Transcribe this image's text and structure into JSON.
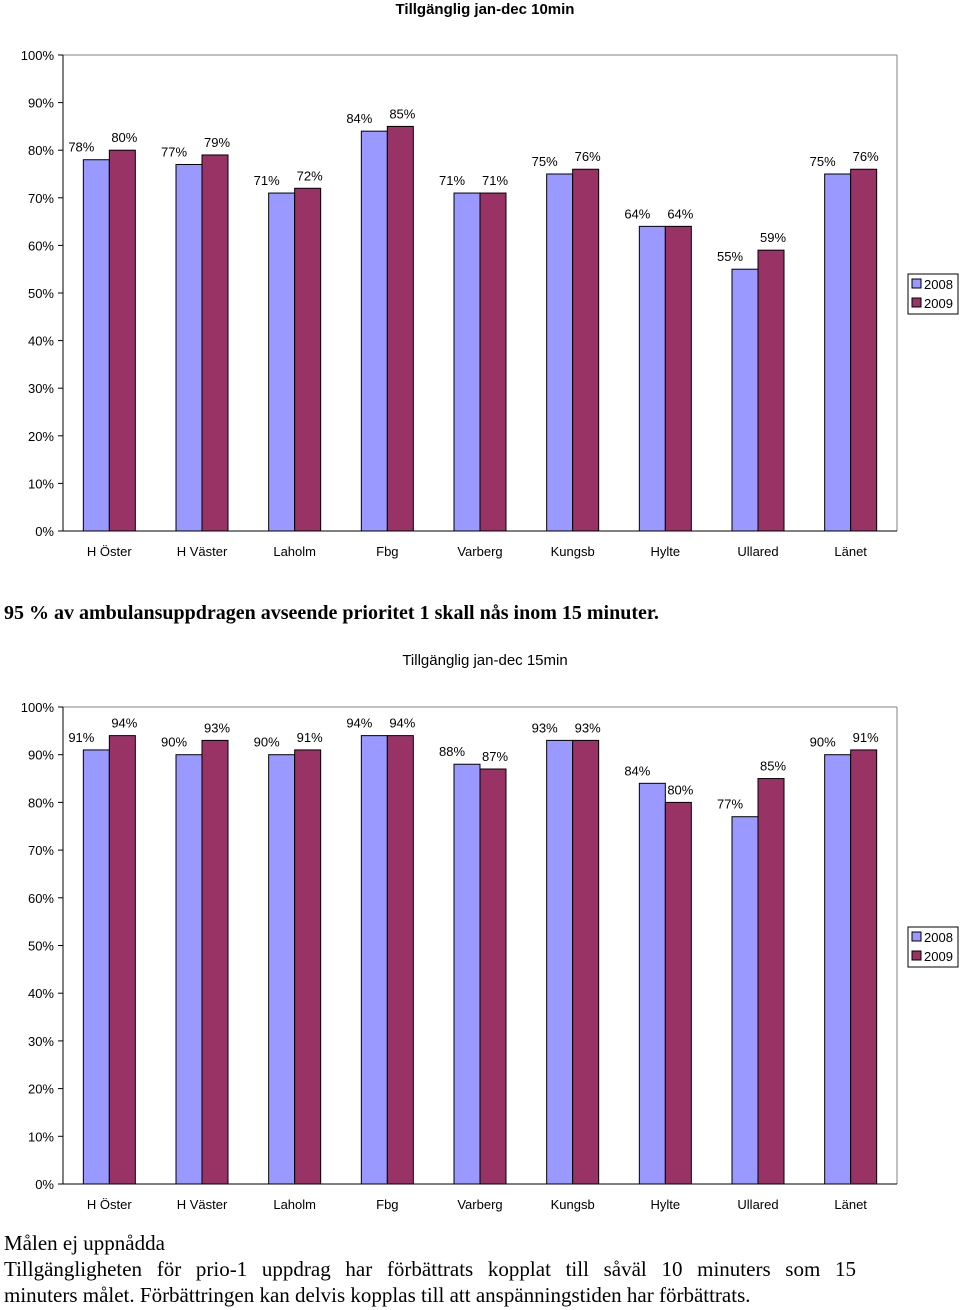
{
  "colors": {
    "series2008": "#9999ff",
    "series2009": "#993366",
    "axis": "#000000",
    "grid": "#808080"
  },
  "heading": "95 % av ambulansuppdragen avseende prioritet 1 skall nås inom 15 minuter.",
  "conclusion": {
    "title": "Målen ej uppnådda",
    "text_line1": "Tillgängligheten för prio-1 uppdrag har förbättrats kopplat till såväl 10 minuters som 15",
    "text_line2": "minuters målet. Förbättringen kan delvis kopplas till att anspänningstiden har förbättrats."
  },
  "chart_data": [
    {
      "type": "bar",
      "title": "Tillgänglig jan-dec 10min",
      "categories": [
        "H Öster",
        "H Väster",
        "Laholm",
        "Fbg",
        "Varberg",
        "Kungsb",
        "Hylte",
        "Ullared",
        "Länet"
      ],
      "series": [
        {
          "name": "2008",
          "values": [
            78,
            77,
            71,
            84,
            71,
            75,
            64,
            55,
            75
          ]
        },
        {
          "name": "2009",
          "values": [
            80,
            79,
            72,
            85,
            71,
            76,
            64,
            59,
            76
          ]
        }
      ],
      "ylim": [
        0,
        100
      ],
      "yticks": [
        "0%",
        "10%",
        "20%",
        "30%",
        "40%",
        "50%",
        "60%",
        "70%",
        "80%",
        "90%",
        "100%"
      ],
      "value_suffix": "%",
      "legend": "right",
      "grid": false
    },
    {
      "type": "bar",
      "title": "Tillgänglig jan-dec 15min",
      "categories": [
        "H Öster",
        "H Väster",
        "Laholm",
        "Fbg",
        "Varberg",
        "Kungsb",
        "Hylte",
        "Ullared",
        "Länet"
      ],
      "series": [
        {
          "name": "2008",
          "values": [
            91,
            90,
            90,
            94,
            88,
            93,
            84,
            77,
            90
          ]
        },
        {
          "name": "2009",
          "values": [
            94,
            93,
            91,
            94,
            87,
            93,
            80,
            85,
            91
          ]
        }
      ],
      "ylim": [
        0,
        100
      ],
      "yticks": [
        "0%",
        "10%",
        "20%",
        "30%",
        "40%",
        "50%",
        "60%",
        "70%",
        "80%",
        "90%",
        "100%"
      ],
      "value_suffix": "%",
      "legend": "right",
      "grid": false
    }
  ]
}
